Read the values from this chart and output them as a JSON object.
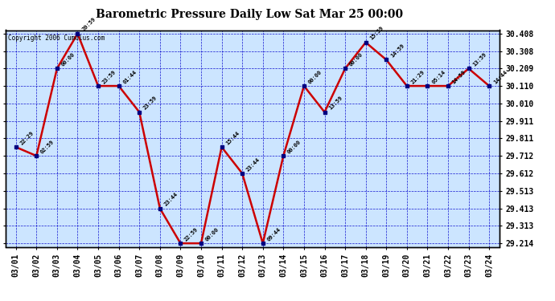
{
  "title": "Barometric Pressure Daily Low Sat Mar 25 00:00",
  "copyright": "Copyright 2006 Cumulus.com",
  "x_labels": [
    "03/01",
    "03/02",
    "03/03",
    "03/04",
    "03/05",
    "03/06",
    "03/07",
    "03/08",
    "03/09",
    "03/10",
    "03/11",
    "03/12",
    "03/13",
    "03/14",
    "03/15",
    "03/16",
    "03/17",
    "03/18",
    "03/19",
    "03/20",
    "03/21",
    "03/22",
    "03/23",
    "03/24"
  ],
  "y_values": [
    29.762,
    29.712,
    30.209,
    30.408,
    30.11,
    30.11,
    29.961,
    29.413,
    29.214,
    29.214,
    29.762,
    29.612,
    29.214,
    29.712,
    30.11,
    29.961,
    30.209,
    30.358,
    30.259,
    30.11,
    30.11,
    30.11,
    30.209,
    30.11
  ],
  "point_labels": [
    "22:29",
    "02:59",
    "00:00",
    "20:59",
    "23:59",
    "01:44",
    "23:59",
    "23:44",
    "22:59",
    "00:00",
    "15:44",
    "23:44",
    "09:44",
    "00:00",
    "00:00",
    "13:59",
    "00:00",
    "15:59",
    "14:59",
    "21:29",
    "05:14",
    "14:59",
    "13:59",
    "14:44"
  ],
  "y_ticks": [
    29.214,
    29.313,
    29.413,
    29.513,
    29.612,
    29.712,
    29.811,
    29.911,
    30.01,
    30.11,
    30.209,
    30.308,
    30.408
  ],
  "y_min": 29.194,
  "y_max": 30.428,
  "line_color": "#cc0000",
  "marker_color": "#000080",
  "plot_bg_color": "#cce5ff",
  "grid_color": "#0000cc",
  "title_fontsize": 10,
  "tick_fontsize": 7,
  "label_fontsize": 5.5
}
